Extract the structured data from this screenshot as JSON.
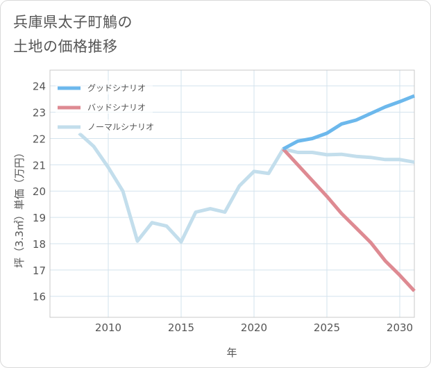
{
  "title": {
    "line1": "兵庫県太子町鵤の",
    "line2": "土地の価格推移"
  },
  "chart_data": {
    "type": "line",
    "title": "兵庫県太子町鵤の土地の価格推移",
    "xlabel": "年",
    "ylabel": "坪（3.3㎡）単価（万円）",
    "xlim": [
      2006,
      2031
    ],
    "ylim": [
      15.2,
      24.6
    ],
    "x_ticks": [
      2010,
      2015,
      2020,
      2025,
      2030
    ],
    "y_ticks": [
      16,
      17,
      18,
      19,
      20,
      21,
      22,
      23,
      24
    ],
    "grid": true,
    "legend_position": "top-left",
    "series": [
      {
        "name": "グッドシナリオ",
        "color": "#6cb8ec",
        "x": [
          2022,
          2023,
          2024,
          2025,
          2026,
          2027,
          2028,
          2029,
          2030,
          2031
        ],
        "y": [
          21.6,
          21.9,
          22.0,
          22.2,
          22.55,
          22.7,
          22.95,
          23.2,
          23.4,
          23.62
        ]
      },
      {
        "name": "バッドシナリオ",
        "color": "#de8a92",
        "x": [
          2022,
          2023,
          2024,
          2025,
          2026,
          2027,
          2028,
          2029,
          2030,
          2031
        ],
        "y": [
          21.6,
          21.0,
          20.4,
          19.8,
          19.15,
          18.6,
          18.05,
          17.35,
          16.8,
          16.2
        ]
      },
      {
        "name": "ノーマルシナリオ",
        "color": "#c3deec",
        "x": [
          2008,
          2009,
          2010,
          2011,
          2012,
          2013,
          2014,
          2015,
          2016,
          2017,
          2018,
          2019,
          2020,
          2021,
          2022,
          2023,
          2024,
          2025,
          2026,
          2027,
          2028,
          2029,
          2030,
          2031
        ],
        "y": [
          22.2,
          21.7,
          20.9,
          20.0,
          18.1,
          18.8,
          18.67,
          18.07,
          19.2,
          19.33,
          19.2,
          20.2,
          20.75,
          20.67,
          21.6,
          21.47,
          21.47,
          21.38,
          21.4,
          21.32,
          21.28,
          21.2,
          21.2,
          21.1
        ]
      }
    ]
  }
}
